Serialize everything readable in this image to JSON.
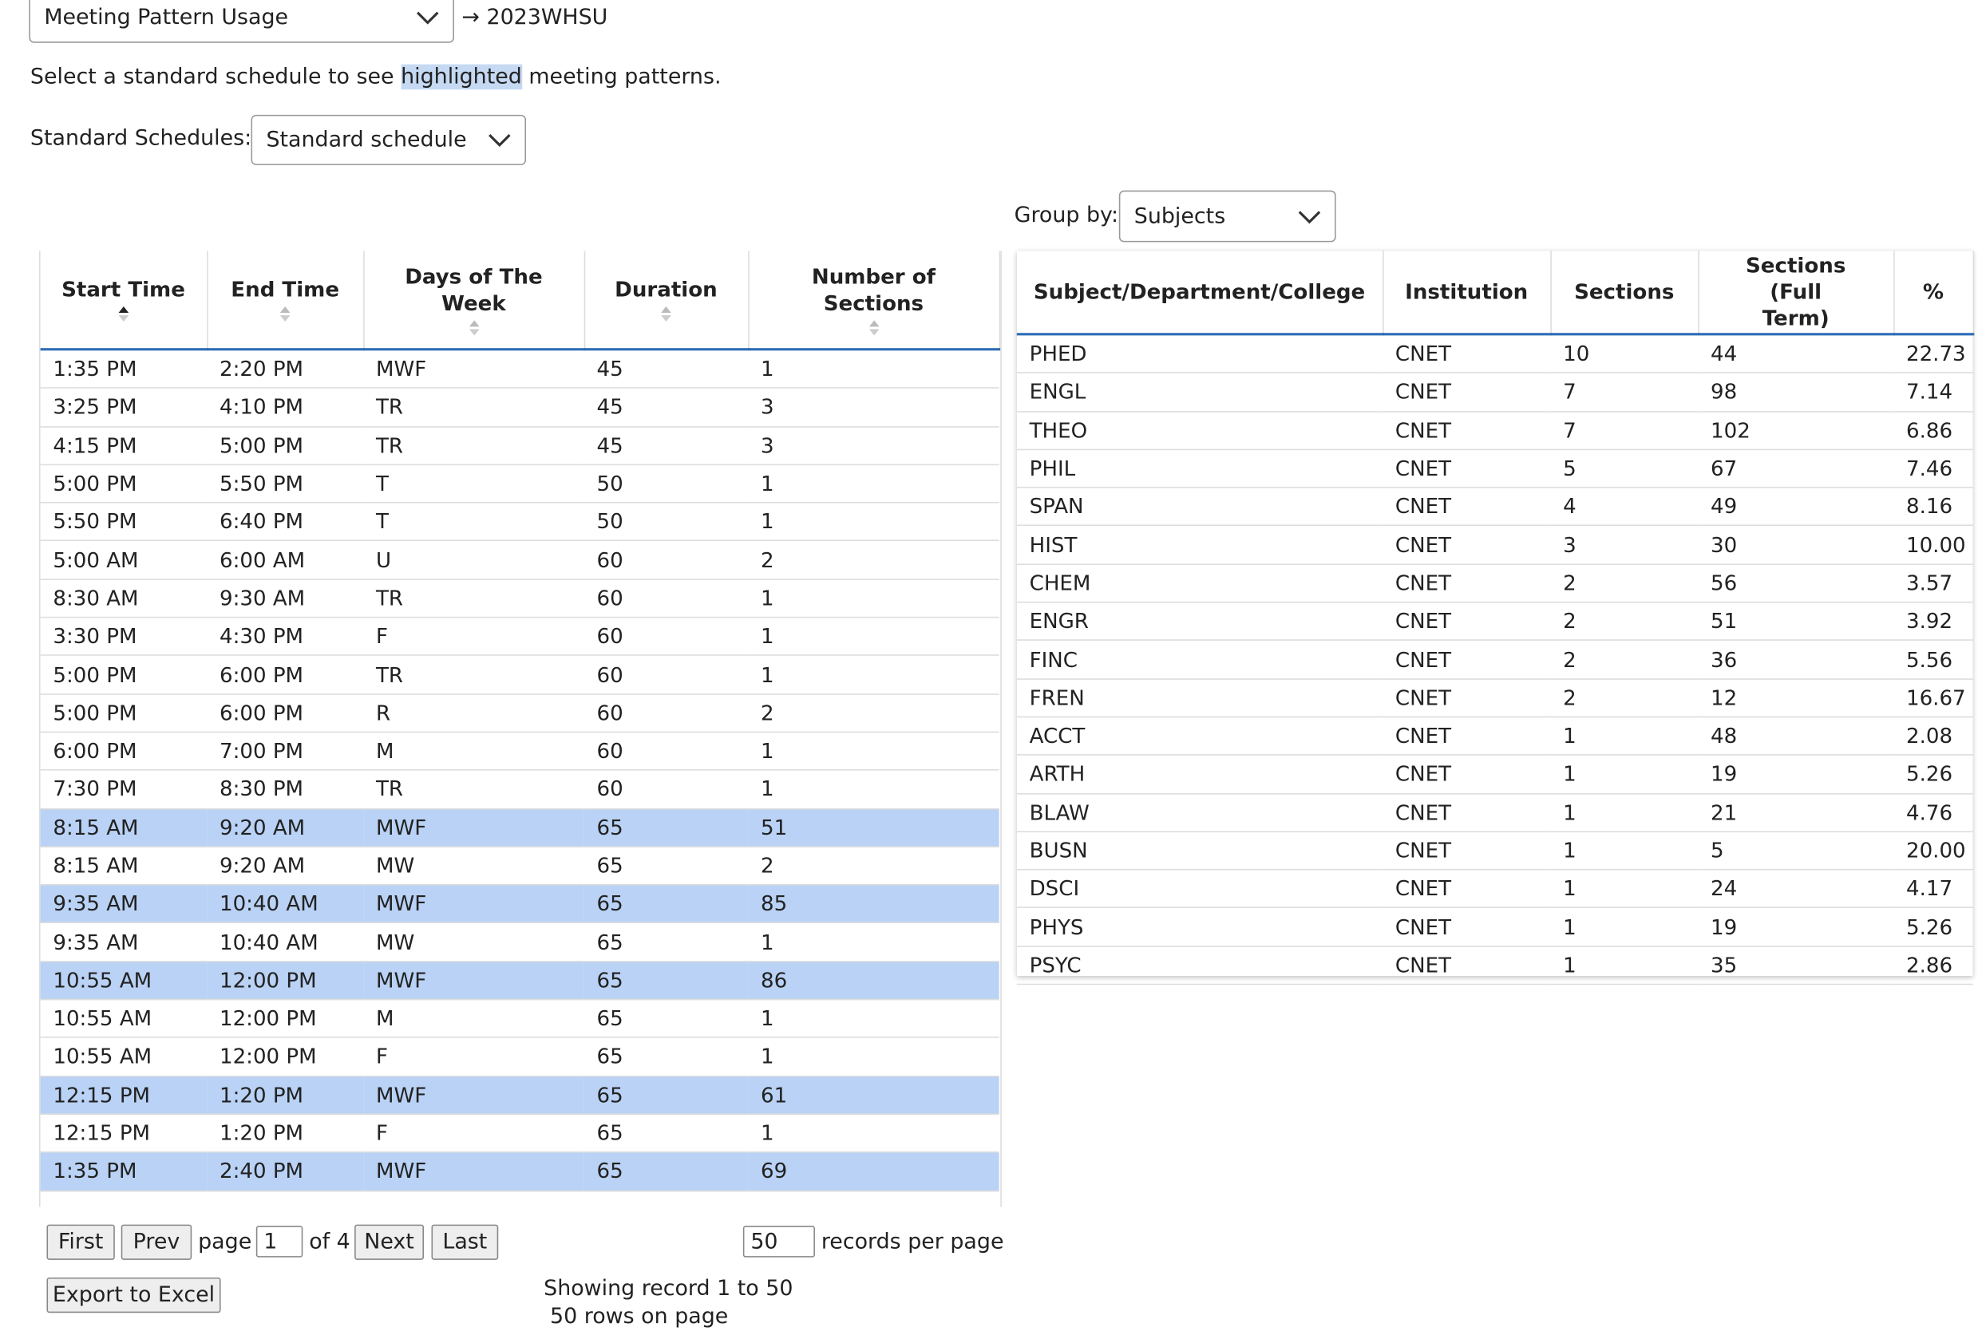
{
  "header": {
    "report_select": "Meeting Pattern Usage",
    "term": "→ 2023WHSU",
    "instruction": {
      "before": "Select a standard schedule to see",
      "highlight": "highlighted",
      "after": "meeting patterns."
    },
    "standard_label": "Standard Schedules:",
    "standard_select": "Standard schedule",
    "group_label": "Group by:",
    "group_select": "Subjects"
  },
  "left_table": {
    "headers": [
      "Start Time",
      "End Time",
      "Days of The Week",
      "Duration",
      "Number of Sections"
    ],
    "rows": [
      {
        "cells": [
          "1:35 PM",
          "2:20 PM",
          "MWF",
          "45",
          "1"
        ],
        "highlighted": false
      },
      {
        "cells": [
          "3:25 PM",
          "4:10 PM",
          "TR",
          "45",
          "3"
        ],
        "highlighted": false
      },
      {
        "cells": [
          "4:15 PM",
          "5:00 PM",
          "TR",
          "45",
          "3"
        ],
        "highlighted": false
      },
      {
        "cells": [
          "5:00 PM",
          "5:50 PM",
          "T",
          "50",
          "1"
        ],
        "highlighted": false
      },
      {
        "cells": [
          "5:50 PM",
          "6:40 PM",
          "T",
          "50",
          "1"
        ],
        "highlighted": false
      },
      {
        "cells": [
          "5:00 AM",
          "6:00 AM",
          "U",
          "60",
          "2"
        ],
        "highlighted": false
      },
      {
        "cells": [
          "8:30 AM",
          "9:30 AM",
          "TR",
          "60",
          "1"
        ],
        "highlighted": false
      },
      {
        "cells": [
          "3:30 PM",
          "4:30 PM",
          "F",
          "60",
          "1"
        ],
        "highlighted": false
      },
      {
        "cells": [
          "5:00 PM",
          "6:00 PM",
          "TR",
          "60",
          "1"
        ],
        "highlighted": false
      },
      {
        "cells": [
          "5:00 PM",
          "6:00 PM",
          "R",
          "60",
          "2"
        ],
        "highlighted": false
      },
      {
        "cells": [
          "6:00 PM",
          "7:00 PM",
          "M",
          "60",
          "1"
        ],
        "highlighted": false
      },
      {
        "cells": [
          "7:30 PM",
          "8:30 PM",
          "TR",
          "60",
          "1"
        ],
        "highlighted": false
      },
      {
        "cells": [
          "8:15 AM",
          "9:20 AM",
          "MWF",
          "65",
          "51"
        ],
        "highlighted": true
      },
      {
        "cells": [
          "8:15 AM",
          "9:20 AM",
          "MW",
          "65",
          "2"
        ],
        "highlighted": false
      },
      {
        "cells": [
          "9:35 AM",
          "10:40 AM",
          "MWF",
          "65",
          "85"
        ],
        "highlighted": true
      },
      {
        "cells": [
          "9:35 AM",
          "10:40 AM",
          "MW",
          "65",
          "1"
        ],
        "highlighted": false
      },
      {
        "cells": [
          "10:55 AM",
          "12:00 PM",
          "MWF",
          "65",
          "86"
        ],
        "highlighted": true
      },
      {
        "cells": [
          "10:55 AM",
          "12:00 PM",
          "M",
          "65",
          "1"
        ],
        "highlighted": false
      },
      {
        "cells": [
          "10:55 AM",
          "12:00 PM",
          "F",
          "65",
          "1"
        ],
        "highlighted": false
      },
      {
        "cells": [
          "12:15 PM",
          "1:20 PM",
          "MWF",
          "65",
          "61"
        ],
        "highlighted": true
      },
      {
        "cells": [
          "12:15 PM",
          "1:20 PM",
          "F",
          "65",
          "1"
        ],
        "highlighted": false
      },
      {
        "cells": [
          "1:35 PM",
          "2:40 PM",
          "MWF",
          "65",
          "69"
        ],
        "highlighted": true
      }
    ]
  },
  "pager": {
    "first": "First",
    "prev": "Prev",
    "page_label": "page",
    "page": "1",
    "of": "of 4",
    "next": "Next",
    "last": "Last",
    "per_page": "50",
    "per_page_label": "records per page",
    "export": "Export to Excel",
    "showing": "Showing record 1 to 50",
    "rows_on_page": "50 rows on page"
  },
  "right_table": {
    "headers": [
      "Subject/Department/College",
      "Institution",
      "Sections",
      "Sections (Full Term)",
      "%"
    ],
    "rows": [
      [
        "PHED",
        "CNET",
        "10",
        "44",
        "22.73"
      ],
      [
        "ENGL",
        "CNET",
        "7",
        "98",
        "7.14"
      ],
      [
        "THEO",
        "CNET",
        "7",
        "102",
        "6.86"
      ],
      [
        "PHIL",
        "CNET",
        "5",
        "67",
        "7.46"
      ],
      [
        "SPAN",
        "CNET",
        "4",
        "49",
        "8.16"
      ],
      [
        "HIST",
        "CNET",
        "3",
        "30",
        "10.00"
      ],
      [
        "CHEM",
        "CNET",
        "2",
        "56",
        "3.57"
      ],
      [
        "ENGR",
        "CNET",
        "2",
        "51",
        "3.92"
      ],
      [
        "FINC",
        "CNET",
        "2",
        "36",
        "5.56"
      ],
      [
        "FREN",
        "CNET",
        "2",
        "12",
        "16.67"
      ],
      [
        "ACCT",
        "CNET",
        "1",
        "48",
        "2.08"
      ],
      [
        "ARTH",
        "CNET",
        "1",
        "19",
        "5.26"
      ],
      [
        "BLAW",
        "CNET",
        "1",
        "21",
        "4.76"
      ],
      [
        "BUSN",
        "CNET",
        "1",
        "5",
        "20.00"
      ],
      [
        "DSCI",
        "CNET",
        "1",
        "24",
        "4.17"
      ],
      [
        "PHYS",
        "CNET",
        "1",
        "19",
        "5.26"
      ],
      [
        "PSYC",
        "CNET",
        "1",
        "35",
        "2.86"
      ]
    ]
  }
}
